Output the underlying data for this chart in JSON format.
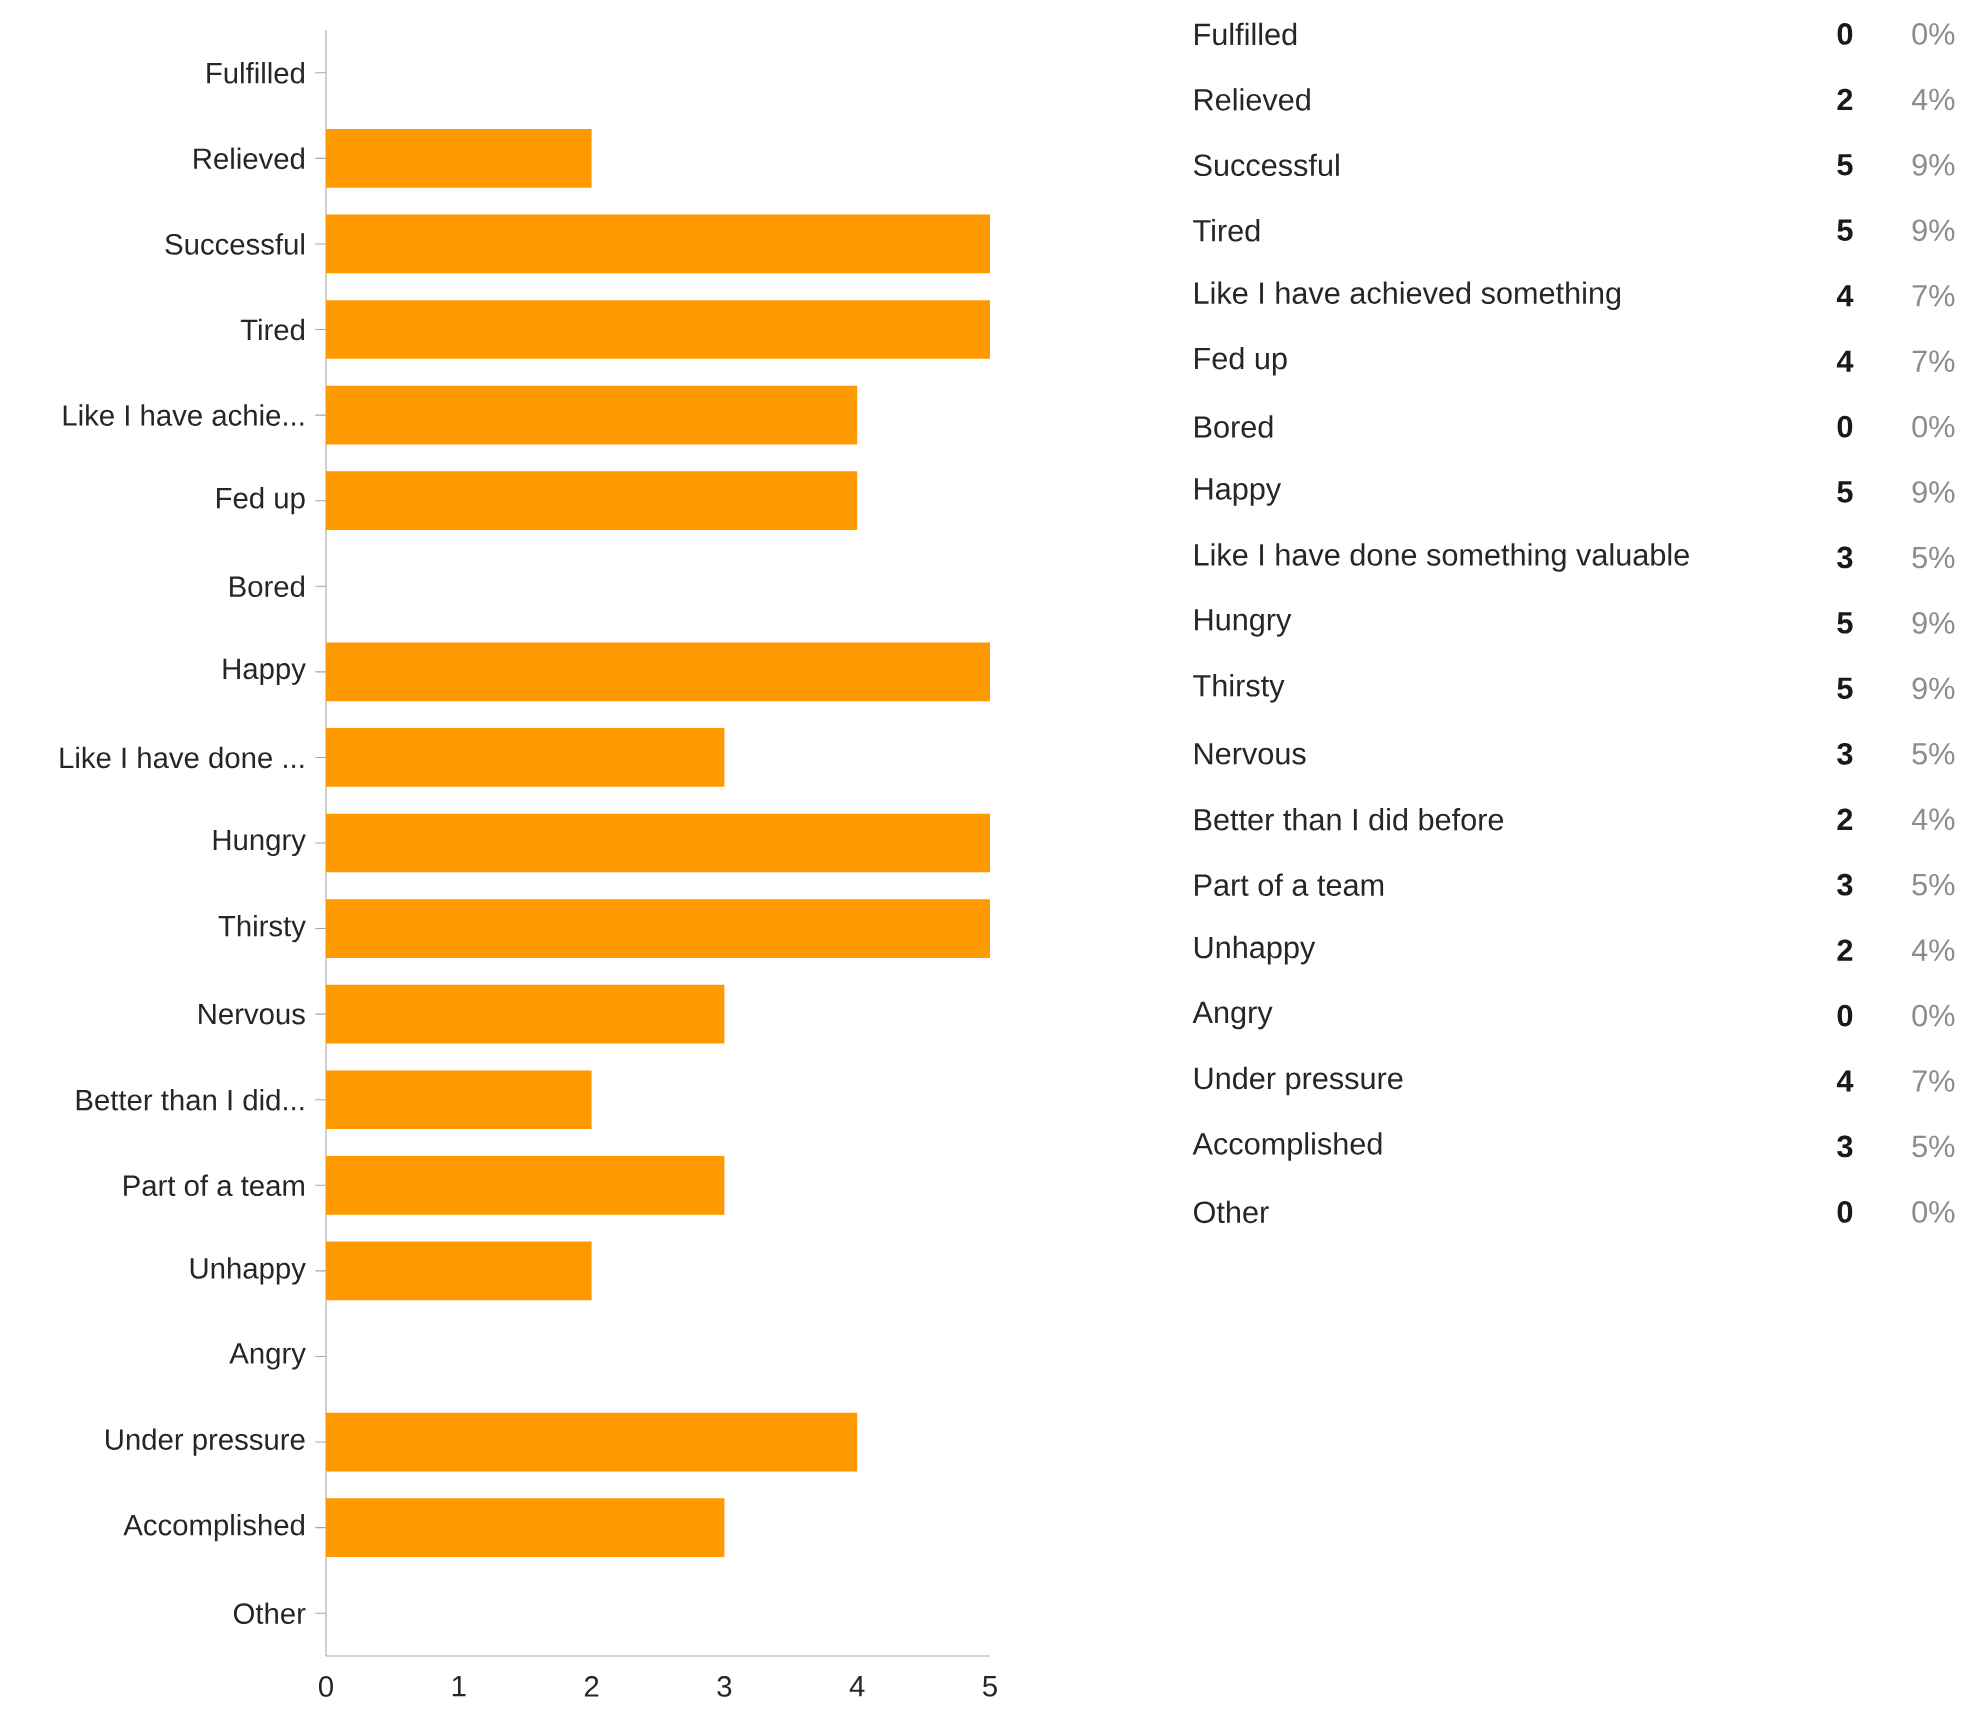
{
  "chart_data": [
    {
      "type": "bar",
      "orientation": "horizontal",
      "color": "#ff9900",
      "categories": [
        "Fulfilled",
        "Relieved",
        "Successful",
        "Tired",
        "Like I have achie...",
        "Fed up",
        "Bored",
        "Happy",
        "Like I have done ...",
        "Hungry",
        "Thirsty",
        "Nervous",
        "Better than I did...",
        "Part of a team",
        "Unhappy",
        "Angry",
        "Under pressure",
        "Accomplished",
        "Other"
      ],
      "values": [
        0,
        2,
        5,
        5,
        4,
        4,
        0,
        5,
        3,
        5,
        5,
        3,
        2,
        3,
        2,
        0,
        4,
        3,
        0
      ],
      "xlim": [
        0,
        5
      ],
      "xticks": [
        0,
        1,
        2,
        3,
        4,
        5
      ]
    },
    {
      "type": "other",
      "categories": [
        "Fulfilled",
        "Relieved",
        "Successful",
        "Tired",
        "Like I have achieved something",
        "Fed up",
        "Bored",
        "Happy",
        "Like I have done something valuable",
        "Hungry",
        "Thirsty",
        "Nervous",
        "Better than I did before",
        "Part of a team",
        "Unhappy",
        "Angry",
        "Under pressure",
        "Accomplished",
        "Other"
      ],
      "values": [
        0,
        2,
        5,
        5,
        4,
        4,
        0,
        5,
        3,
        5,
        5,
        3,
        2,
        3,
        2,
        0,
        4,
        3,
        0
      ],
      "data_labels": true,
      "annotations": [
        "0%",
        "4%",
        "9%",
        "9%",
        "7%",
        "7%",
        "0%",
        "9%",
        "5%",
        "9%",
        "9%",
        "5%",
        "4%",
        "5%",
        "4%",
        "0%",
        "7%",
        "5%",
        "0%"
      ]
    }
  ]
}
